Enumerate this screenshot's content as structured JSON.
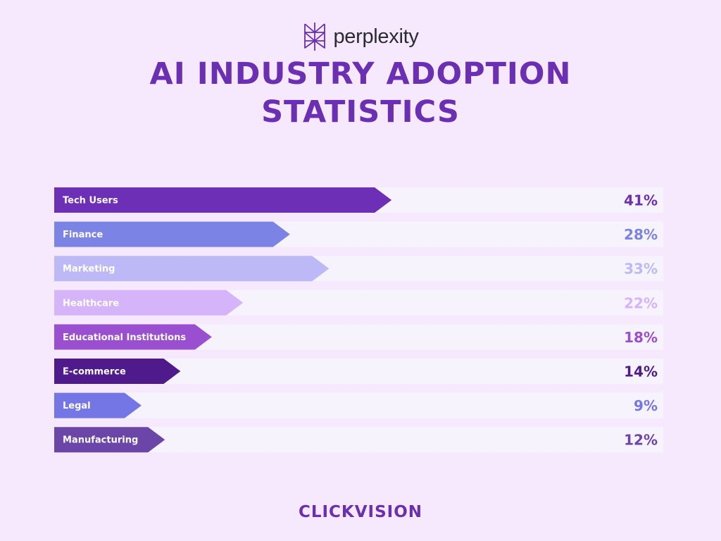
{
  "header": {
    "brand": "perplexity",
    "title_line1": "AI INDUSTRY ADOPTION",
    "title_line2": "STATISTICS"
  },
  "footer": {
    "brand": "CLICKVISION"
  },
  "colors": {
    "background": "#f6e9fd",
    "track": "#f6f3fd",
    "title": "#6a2fb5"
  },
  "chart_data": {
    "type": "bar",
    "orientation": "horizontal",
    "categories": [
      "Tech Users",
      "Finance",
      "Marketing",
      "Healthcare",
      "Educational Institutions",
      "E-commerce",
      "Legal",
      "Manufacturing"
    ],
    "values": [
      41,
      28,
      33,
      22,
      18,
      14,
      9,
      12
    ],
    "value_labels": [
      "41%",
      "28%",
      "33%",
      "22%",
      "18%",
      "14%",
      "9%",
      "12%"
    ],
    "unit": "%",
    "bar_colors": [
      "#6d2fb6",
      "#7b83e5",
      "#bdb9f6",
      "#d6b4fa",
      "#9a4fd1",
      "#4f1a8c",
      "#7476e6",
      "#6c45a8"
    ],
    "label_colors": [
      "#6d2fb6",
      "#7b83e5",
      "#bdb9f6",
      "#d6b4fa",
      "#9a4fd1",
      "#4f1a8c",
      "#7476e6",
      "#6c45a8"
    ],
    "grid": false,
    "legend": "none"
  }
}
